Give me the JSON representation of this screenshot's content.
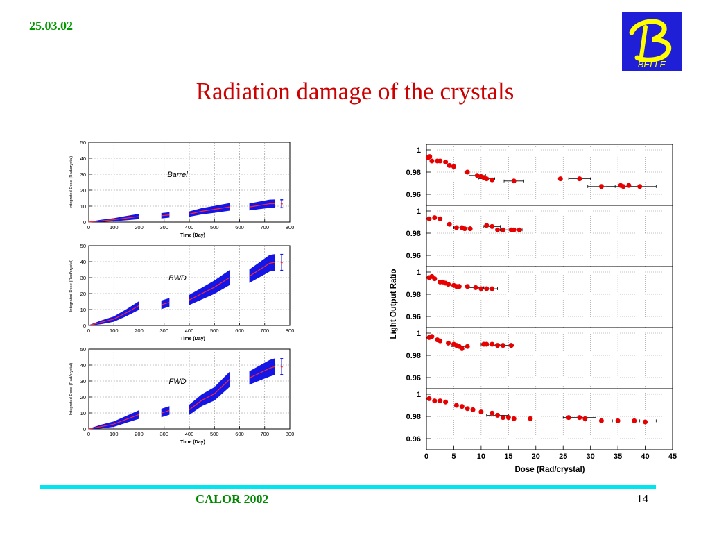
{
  "slide": {
    "date": "25.03.02",
    "title": "Radiation damage of the crystals",
    "footer": "CALOR 2002",
    "page": "14",
    "logo_text": "BELLE",
    "logo_letter": "B"
  },
  "colors": {
    "date": "#009900",
    "title": "#cc0000",
    "footer": "#008800",
    "rule": "#00e5ee",
    "logo_bg": "#1f1fd8",
    "logo_fg": "#ffff00",
    "band": "#1515e6",
    "line": "#ff2a2a",
    "marker": "#e60000"
  },
  "chart_data": [
    {
      "type": "area",
      "annotation": "Barrel",
      "xlabel": "Time (Day)",
      "ylabel": "Integrated Dose (Rad/crystal)",
      "xlim": [
        0,
        800
      ],
      "ylim": [
        0,
        50
      ],
      "xticks": [
        0,
        100,
        200,
        300,
        400,
        500,
        600,
        700,
        800
      ],
      "yticks": [
        0,
        10,
        20,
        30,
        40,
        50
      ],
      "grid": true,
      "segments": [
        {
          "x": [
            0,
            50,
            100,
            150,
            200
          ],
          "y": [
            0,
            0.8,
            1.5,
            2.5,
            3.5
          ],
          "err": [
            0,
            0.5,
            0.8,
            1.2,
            1.5
          ]
        },
        {
          "x": [
            290,
            320
          ],
          "y": [
            4.0,
            4.5
          ],
          "err": [
            1.5,
            1.5
          ]
        },
        {
          "x": [
            400,
            450,
            500,
            560
          ],
          "y": [
            5.0,
            6.8,
            8.0,
            9.5
          ],
          "err": [
            1.5,
            1.8,
            2.0,
            2.2
          ]
        },
        {
          "x": [
            640,
            680,
            720,
            740
          ],
          "y": [
            9.5,
            10.5,
            11.5,
            11.5
          ],
          "err": [
            2.0,
            2.2,
            2.4,
            2.5
          ]
        }
      ]
    },
    {
      "type": "area",
      "annotation": "BWD",
      "xlabel": "Time (Day)",
      "ylabel": "Integrated Dose (Rad/crystal)",
      "xlim": [
        0,
        800
      ],
      "ylim": [
        0,
        50
      ],
      "xticks": [
        0,
        100,
        200,
        300,
        400,
        500,
        600,
        700,
        800
      ],
      "yticks": [
        0,
        10,
        20,
        30,
        40,
        50
      ],
      "grid": true,
      "segments": [
        {
          "x": [
            0,
            50,
            100,
            150,
            200
          ],
          "y": [
            0,
            2,
            4,
            8,
            12.5
          ],
          "err": [
            0,
            1,
            1.5,
            2,
            2.5
          ]
        },
        {
          "x": [
            290,
            320
          ],
          "y": [
            13,
            14.5
          ],
          "err": [
            2.5,
            2.5
          ]
        },
        {
          "x": [
            400,
            450,
            500,
            560
          ],
          "y": [
            16,
            20,
            24,
            30
          ],
          "err": [
            3,
            3.5,
            4,
            4.5
          ]
        },
        {
          "x": [
            640,
            680,
            720,
            740
          ],
          "y": [
            31,
            35,
            39,
            39.5
          ],
          "err": [
            4,
            4.5,
            5,
            5
          ]
        }
      ]
    },
    {
      "type": "area",
      "annotation": "FWD",
      "xlabel": "Time (Day)",
      "ylabel": "Integrated Dose (Rad/crystal)",
      "xlim": [
        0,
        800
      ],
      "ylim": [
        0,
        50
      ],
      "xticks": [
        0,
        100,
        200,
        300,
        400,
        500,
        600,
        700,
        800
      ],
      "yticks": [
        0,
        10,
        20,
        30,
        40,
        50
      ],
      "grid": true,
      "segments": [
        {
          "x": [
            0,
            50,
            100,
            150,
            200
          ],
          "y": [
            0,
            1.5,
            3,
            6,
            9
          ],
          "err": [
            0,
            1,
            1.5,
            2,
            2.5
          ]
        },
        {
          "x": [
            290,
            320
          ],
          "y": [
            10,
            11.5
          ],
          "err": [
            2.5,
            2.5
          ]
        },
        {
          "x": [
            400,
            450,
            500,
            560
          ],
          "y": [
            12,
            18,
            22,
            31
          ],
          "err": [
            3,
            3.5,
            4,
            4.5
          ]
        },
        {
          "x": [
            640,
            680,
            720,
            740
          ],
          "y": [
            32,
            35,
            38,
            39
          ],
          "err": [
            4,
            4.5,
            5,
            5
          ]
        }
      ]
    },
    {
      "type": "scatter",
      "xlabel": "Dose (Rad/crystal)",
      "ylabel": "Light Output Ratio",
      "xlim": [
        0,
        45
      ],
      "ylim": [
        0.95,
        1.005
      ],
      "xticks": [
        0,
        5,
        10,
        15,
        20,
        25,
        30,
        35,
        40,
        45
      ],
      "yticks": [
        0.96,
        0.98,
        1
      ],
      "ytick_labels": [
        "0.96",
        "0.98",
        "1"
      ],
      "grid": true,
      "panels": [
        {
          "points": [
            [
              0.3,
              0.993
            ],
            [
              0.6,
              0.994
            ],
            [
              1,
              0.99
            ],
            [
              2,
              0.99
            ],
            [
              2.5,
              0.99
            ],
            [
              3.5,
              0.989
            ],
            [
              4.2,
              0.986
            ],
            [
              5,
              0.985
            ],
            [
              7.5,
              0.98
            ],
            [
              9.3,
              0.977
            ],
            [
              10,
              0.976
            ],
            [
              10.5,
              0.975
            ],
            [
              11,
              0.974
            ],
            [
              12,
              0.973
            ],
            [
              16,
              0.972
            ],
            [
              24.5,
              0.974
            ],
            [
              28,
              0.974
            ],
            [
              32,
              0.967
            ],
            [
              35.5,
              0.968
            ],
            [
              36,
              0.967
            ],
            [
              37,
              0.968
            ],
            [
              39,
              0.967
            ]
          ],
          "xerr": [
            [
              9.3,
              1.5
            ],
            [
              11,
              1.5
            ],
            [
              16,
              1.8
            ],
            [
              28,
              2
            ],
            [
              32,
              2.5
            ],
            [
              36,
              3
            ],
            [
              39,
              3
            ]
          ]
        },
        {
          "points": [
            [
              0.5,
              0.993
            ],
            [
              1.5,
              0.994
            ],
            [
              2.5,
              0.993
            ],
            [
              4.2,
              0.988
            ],
            [
              5.5,
              0.985
            ],
            [
              6.5,
              0.985
            ],
            [
              7,
              0.984
            ],
            [
              8,
              0.984
            ],
            [
              11,
              0.987
            ],
            [
              12,
              0.986
            ],
            [
              13,
              0.983
            ],
            [
              14,
              0.983
            ],
            [
              15.5,
              0.983
            ],
            [
              16,
              0.983
            ],
            [
              17,
              0.983
            ]
          ],
          "xerr": [
            [
              6.5,
              1.5
            ],
            [
              12,
              1.5
            ],
            [
              15.5,
              2
            ]
          ]
        },
        {
          "points": [
            [
              0.5,
              0.995
            ],
            [
              1,
              0.996
            ],
            [
              1.5,
              0.994
            ],
            [
              2.5,
              0.991
            ],
            [
              3,
              0.991
            ],
            [
              3.5,
              0.99
            ],
            [
              4,
              0.989
            ],
            [
              5,
              0.988
            ],
            [
              5.5,
              0.987
            ],
            [
              6,
              0.987
            ],
            [
              7.5,
              0.987
            ],
            [
              9,
              0.986
            ],
            [
              10,
              0.985
            ],
            [
              11,
              0.985
            ],
            [
              12,
              0.985
            ]
          ],
          "xerr": [
            [
              5,
              1
            ],
            [
              9,
              1.5
            ],
            [
              11,
              2
            ]
          ]
        },
        {
          "points": [
            [
              0.5,
              0.996
            ],
            [
              1,
              0.997
            ],
            [
              2,
              0.994
            ],
            [
              2.5,
              0.993
            ],
            [
              4,
              0.991
            ],
            [
              5,
              0.99
            ],
            [
              5.5,
              0.989
            ],
            [
              6,
              0.988
            ],
            [
              6.5,
              0.986
            ],
            [
              7.5,
              0.988
            ],
            [
              10.5,
              0.99
            ],
            [
              11,
              0.99
            ],
            [
              12,
              0.99
            ],
            [
              13,
              0.989
            ],
            [
              14,
              0.989
            ],
            [
              15.5,
              0.989
            ]
          ],
          "xerr": [
            [
              6,
              1.5
            ],
            [
              12,
              2
            ],
            [
              14,
              2
            ]
          ]
        },
        {
          "points": [
            [
              0.5,
              0.996
            ],
            [
              1.5,
              0.994
            ],
            [
              2.5,
              0.994
            ],
            [
              3.5,
              0.993
            ],
            [
              5.5,
              0.99
            ],
            [
              6.5,
              0.989
            ],
            [
              7.5,
              0.987
            ],
            [
              8.5,
              0.986
            ],
            [
              10,
              0.984
            ],
            [
              12,
              0.983
            ],
            [
              13,
              0.981
            ],
            [
              14,
              0.979
            ],
            [
              15,
              0.979
            ],
            [
              16,
              0.978
            ],
            [
              19,
              0.978
            ],
            [
              26,
              0.979
            ],
            [
              28,
              0.979
            ],
            [
              29,
              0.978
            ],
            [
              32,
              0.976
            ],
            [
              35,
              0.976
            ],
            [
              38,
              0.976
            ],
            [
              40,
              0.975
            ]
          ],
          "xerr": [
            [
              13,
              2
            ],
            [
              28,
              3
            ],
            [
              32,
              3
            ],
            [
              35,
              4
            ],
            [
              38,
              4
            ]
          ]
        }
      ]
    }
  ]
}
